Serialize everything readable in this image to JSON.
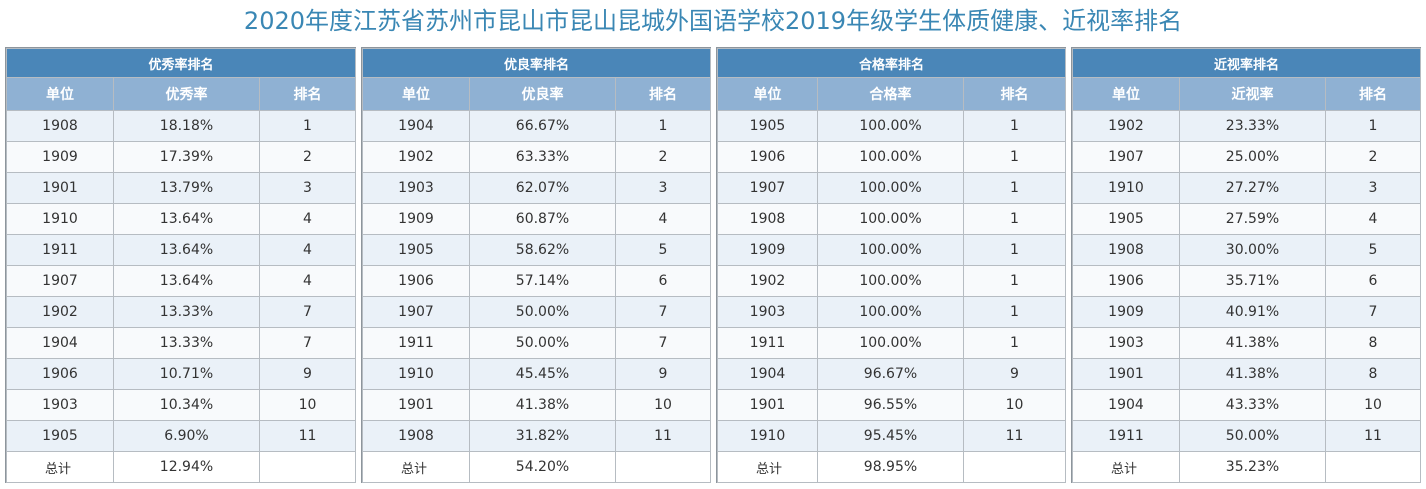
{
  "title": "2020年度江苏省苏州市昆山市昆山昆城外国语学校2019年级学生体质健康、近视率排名",
  "total_label": "总计",
  "colors": {
    "title": "#3a87b4",
    "section_header": "#4a86b8",
    "column_header": "#8fb1d3",
    "row_odd": "#eaf1f8",
    "row_even": "#f8fafc"
  },
  "tables": [
    {
      "section": "优秀率排名",
      "headers": [
        "单位",
        "优秀率",
        "排名"
      ],
      "rows": [
        [
          "1908",
          "18.18%",
          "1"
        ],
        [
          "1909",
          "17.39%",
          "2"
        ],
        [
          "1901",
          "13.79%",
          "3"
        ],
        [
          "1910",
          "13.64%",
          "4"
        ],
        [
          "1911",
          "13.64%",
          "4"
        ],
        [
          "1907",
          "13.64%",
          "4"
        ],
        [
          "1902",
          "13.33%",
          "7"
        ],
        [
          "1904",
          "13.33%",
          "7"
        ],
        [
          "1906",
          "10.71%",
          "9"
        ],
        [
          "1903",
          "10.34%",
          "10"
        ],
        [
          "1905",
          "6.90%",
          "11"
        ]
      ],
      "total": "12.94%"
    },
    {
      "section": "优良率排名",
      "headers": [
        "单位",
        "优良率",
        "排名"
      ],
      "rows": [
        [
          "1904",
          "66.67%",
          "1"
        ],
        [
          "1902",
          "63.33%",
          "2"
        ],
        [
          "1903",
          "62.07%",
          "3"
        ],
        [
          "1909",
          "60.87%",
          "4"
        ],
        [
          "1905",
          "58.62%",
          "5"
        ],
        [
          "1906",
          "57.14%",
          "6"
        ],
        [
          "1907",
          "50.00%",
          "7"
        ],
        [
          "1911",
          "50.00%",
          "7"
        ],
        [
          "1910",
          "45.45%",
          "9"
        ],
        [
          "1901",
          "41.38%",
          "10"
        ],
        [
          "1908",
          "31.82%",
          "11"
        ]
      ],
      "total": "54.20%"
    },
    {
      "section": "合格率排名",
      "headers": [
        "单位",
        "合格率",
        "排名"
      ],
      "rows": [
        [
          "1905",
          "100.00%",
          "1"
        ],
        [
          "1906",
          "100.00%",
          "1"
        ],
        [
          "1907",
          "100.00%",
          "1"
        ],
        [
          "1908",
          "100.00%",
          "1"
        ],
        [
          "1909",
          "100.00%",
          "1"
        ],
        [
          "1902",
          "100.00%",
          "1"
        ],
        [
          "1903",
          "100.00%",
          "1"
        ],
        [
          "1911",
          "100.00%",
          "1"
        ],
        [
          "1904",
          "96.67%",
          "9"
        ],
        [
          "1901",
          "96.55%",
          "10"
        ],
        [
          "1910",
          "95.45%",
          "11"
        ]
      ],
      "total": "98.95%"
    },
    {
      "section": "近视率排名",
      "headers": [
        "单位",
        "近视率",
        "排名"
      ],
      "rows": [
        [
          "1902",
          "23.33%",
          "1"
        ],
        [
          "1907",
          "25.00%",
          "2"
        ],
        [
          "1910",
          "27.27%",
          "3"
        ],
        [
          "1905",
          "27.59%",
          "4"
        ],
        [
          "1908",
          "30.00%",
          "5"
        ],
        [
          "1906",
          "35.71%",
          "6"
        ],
        [
          "1909",
          "40.91%",
          "7"
        ],
        [
          "1903",
          "41.38%",
          "8"
        ],
        [
          "1901",
          "41.38%",
          "8"
        ],
        [
          "1904",
          "43.33%",
          "10"
        ],
        [
          "1911",
          "50.00%",
          "11"
        ]
      ],
      "total": "35.23%"
    }
  ]
}
